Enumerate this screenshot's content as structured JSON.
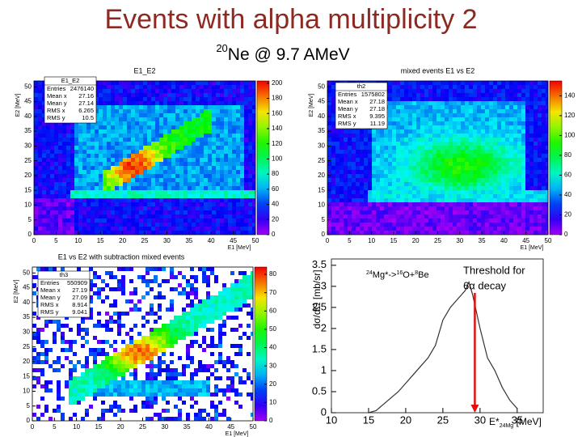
{
  "title": "Events with alpha multiplicity 2",
  "subtitle": {
    "sup": "20",
    "text": "Ne @ 9.7 AMeV"
  },
  "panels": [
    {
      "title": "E1_E2",
      "stats": {
        "name": "E1_E2",
        "rows": [
          [
            "Entries",
            2476140
          ],
          [
            "Mean x",
            27.16
          ],
          [
            "Mean y",
            27.14
          ],
          [
            "RMS x",
            6.265
          ],
          [
            "RMS y",
            10.5
          ]
        ]
      },
      "xlabel": "E1 [MeV]",
      "ylabel": "E2 [MeV]",
      "xlim": [
        0,
        50
      ],
      "ylim": [
        0,
        52
      ],
      "zlim": [
        0,
        203
      ],
      "xticks": [
        0,
        5,
        10,
        15,
        20,
        25,
        30,
        35,
        40,
        45,
        50
      ],
      "yticks": [
        0,
        5,
        10,
        15,
        20,
        25,
        30,
        35,
        40,
        45,
        50
      ],
      "zticks": [
        0,
        20,
        40,
        60,
        80,
        100,
        120,
        140,
        160,
        180,
        200
      ]
    },
    {
      "title": "mixed events E1 vs E2",
      "stats": {
        "name": "th2",
        "rows": [
          [
            "Entries",
            1575802
          ],
          [
            "Mean x",
            27.18
          ],
          [
            "Mean y",
            27.18
          ],
          [
            "RMS x",
            9.395
          ],
          [
            "RMS y",
            11.19
          ]
        ]
      },
      "xlabel": "E1 [MeV]",
      "ylabel": "E2 [MeV]",
      "xlim": [
        0,
        50
      ],
      "ylim": [
        0,
        52
      ],
      "zlim": [
        0,
        155
      ],
      "xticks": [
        0,
        5,
        10,
        15,
        20,
        25,
        30,
        35,
        40,
        45,
        50
      ],
      "yticks": [
        0,
        5,
        10,
        15,
        20,
        25,
        30,
        35,
        40,
        45,
        50
      ],
      "zticks": [
        0,
        20,
        40,
        60,
        80,
        100,
        120,
        140
      ]
    },
    {
      "title": "E1 vs E2 with subtraction mixed events",
      "stats": {
        "name": "th3",
        "rows": [
          [
            "Entries",
            550909
          ],
          [
            "Mean x",
            27.19
          ],
          [
            "Mean y",
            27.09
          ],
          [
            "RMS x",
            8.914
          ],
          [
            "RMS y",
            9.041
          ]
        ]
      },
      "xlabel": "E1 [MeV]",
      "ylabel": "E2 [MeV]",
      "xlim": [
        0,
        50
      ],
      "ylim": [
        0,
        52
      ],
      "zlim": [
        0,
        84
      ],
      "xticks": [
        0,
        5,
        10,
        15,
        20,
        25,
        30,
        35,
        40,
        45,
        50
      ],
      "yticks": [
        0,
        5,
        10,
        15,
        20,
        25,
        30,
        35,
        40,
        45,
        50
      ],
      "zticks": [
        0,
        10,
        20,
        30,
        40,
        50,
        60,
        70,
        80
      ]
    }
  ],
  "spectrum": {
    "annotation": [
      "24",
      "Mg*->",
      "16",
      "O+",
      "8",
      "Be"
    ],
    "xlabel": [
      "E*",
      "24Mg",
      " [MeV]"
    ],
    "ylabel": "dσ/dΩ [mb/sr]",
    "threshold": [
      "Threshold for",
      "6α decay"
    ],
    "threshold_x": 29.3,
    "xlim": [
      10,
      38.5
    ],
    "ylim": [
      0,
      3.65
    ],
    "xticks": [
      10,
      15,
      20,
      25,
      30,
      35
    ],
    "yticks": [
      0,
      0.5,
      1,
      1.5,
      2,
      2.5,
      3,
      3.5
    ],
    "x": [
      15,
      16,
      17,
      18,
      19,
      20,
      21,
      22,
      23,
      24,
      25,
      26,
      27,
      28,
      28.5,
      29,
      30,
      31,
      32,
      33,
      34,
      35
    ],
    "values": [
      0,
      0.05,
      0.2,
      0.35,
      0.5,
      0.7,
      0.9,
      1.1,
      1.3,
      1.6,
      2.2,
      2.5,
      2.7,
      2.9,
      3.1,
      2.8,
      2.0,
      1.3,
      1.0,
      0.6,
      0.3,
      0.1
    ],
    "color": "#333333",
    "arrow_color": "#e01010"
  }
}
